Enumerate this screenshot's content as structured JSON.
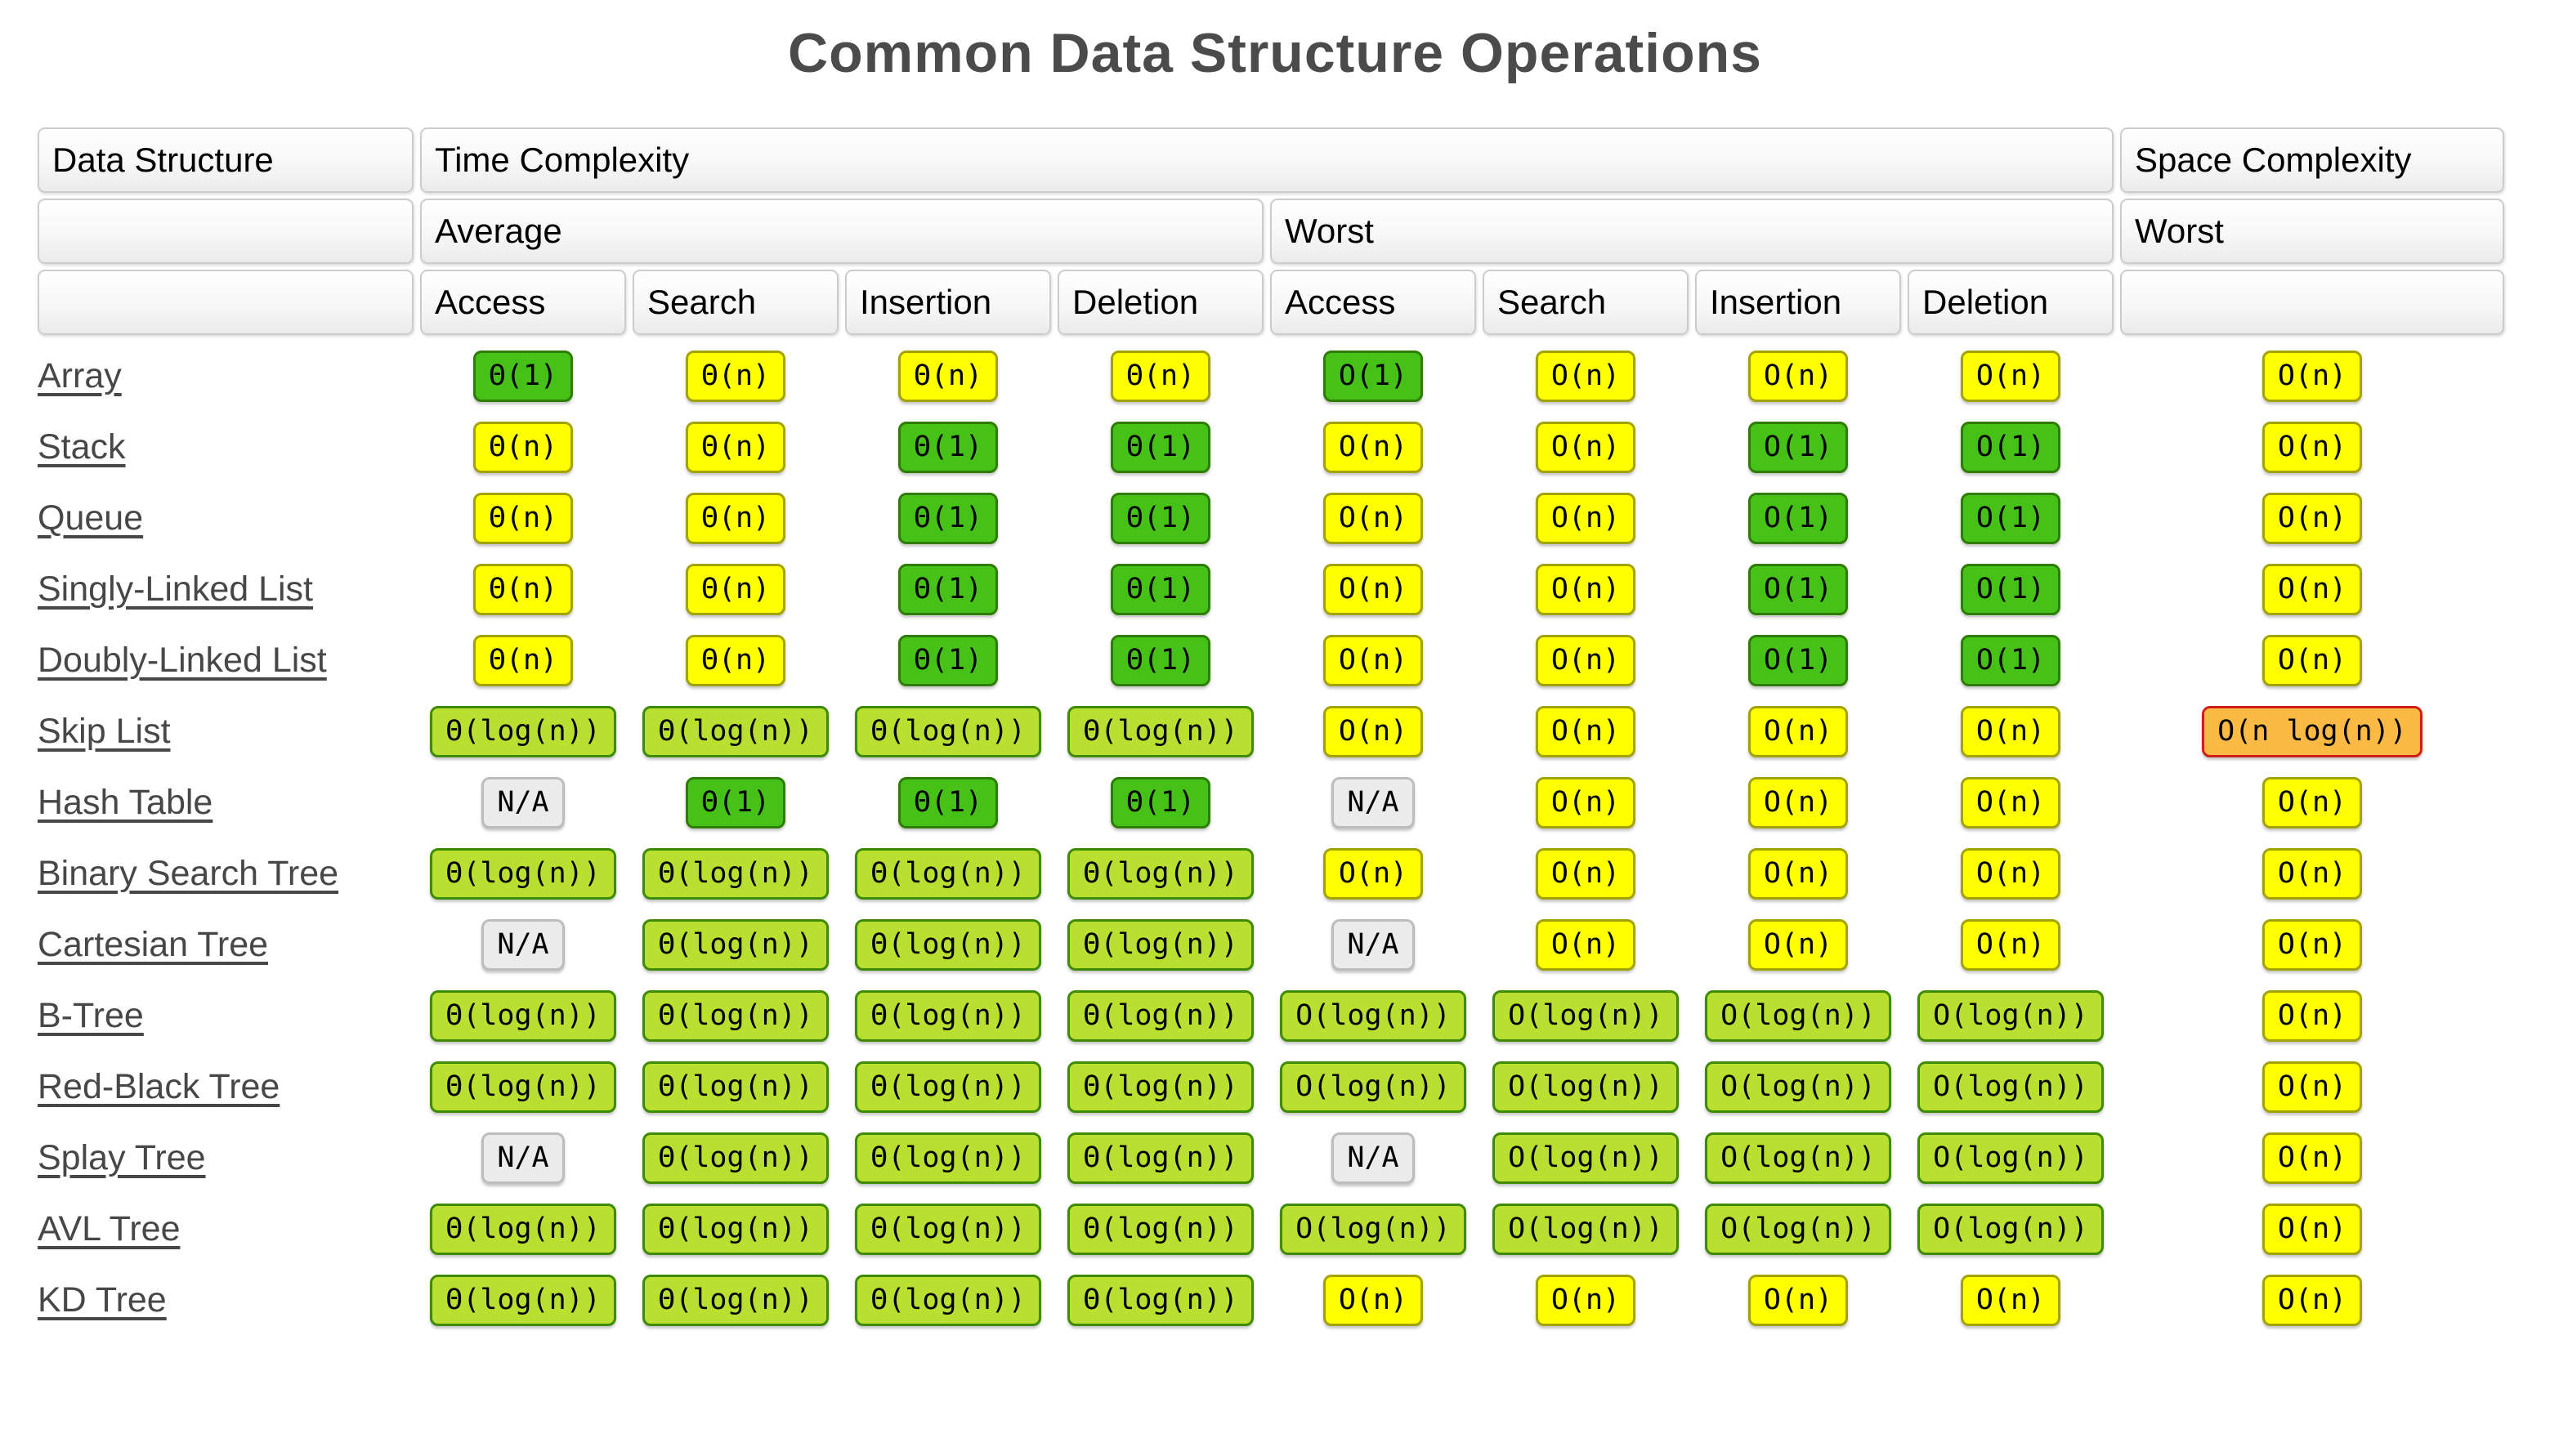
{
  "title": "Common Data Structure Operations",
  "header": {
    "data_structure": "Data Structure",
    "time_complexity": "Time Complexity",
    "space_complexity": "Space Complexity",
    "average": "Average",
    "worst": "Worst",
    "space_worst": "Worst",
    "operations": [
      "Access",
      "Search",
      "Insertion",
      "Deletion",
      "Access",
      "Search",
      "Insertion",
      "Deletion"
    ]
  },
  "legend_colors": {
    "excellent_green": "#46c117",
    "good_yellowgreen": "#b9e030",
    "fair_yellow": "#ffff00",
    "bad_orange": "#fbba44",
    "na_gray": "#ebebeb",
    "orange_border_red": "#ce2018",
    "link_gray": "#474747",
    "title_gray": "#4b4b4b"
  },
  "rows": [
    {
      "name": "Array",
      "cells": [
        {
          "v": "Θ(1)",
          "c": "green"
        },
        {
          "v": "Θ(n)",
          "c": "yellow"
        },
        {
          "v": "Θ(n)",
          "c": "yellow"
        },
        {
          "v": "Θ(n)",
          "c": "yellow"
        },
        {
          "v": "O(1)",
          "c": "green"
        },
        {
          "v": "O(n)",
          "c": "yellow"
        },
        {
          "v": "O(n)",
          "c": "yellow"
        },
        {
          "v": "O(n)",
          "c": "yellow"
        },
        {
          "v": "O(n)",
          "c": "yellow"
        }
      ]
    },
    {
      "name": "Stack",
      "cells": [
        {
          "v": "Θ(n)",
          "c": "yellow"
        },
        {
          "v": "Θ(n)",
          "c": "yellow"
        },
        {
          "v": "Θ(1)",
          "c": "green"
        },
        {
          "v": "Θ(1)",
          "c": "green"
        },
        {
          "v": "O(n)",
          "c": "yellow"
        },
        {
          "v": "O(n)",
          "c": "yellow"
        },
        {
          "v": "O(1)",
          "c": "green"
        },
        {
          "v": "O(1)",
          "c": "green"
        },
        {
          "v": "O(n)",
          "c": "yellow"
        }
      ]
    },
    {
      "name": "Queue",
      "cells": [
        {
          "v": "Θ(n)",
          "c": "yellow"
        },
        {
          "v": "Θ(n)",
          "c": "yellow"
        },
        {
          "v": "Θ(1)",
          "c": "green"
        },
        {
          "v": "Θ(1)",
          "c": "green"
        },
        {
          "v": "O(n)",
          "c": "yellow"
        },
        {
          "v": "O(n)",
          "c": "yellow"
        },
        {
          "v": "O(1)",
          "c": "green"
        },
        {
          "v": "O(1)",
          "c": "green"
        },
        {
          "v": "O(n)",
          "c": "yellow"
        }
      ]
    },
    {
      "name": "Singly-Linked List",
      "cells": [
        {
          "v": "Θ(n)",
          "c": "yellow"
        },
        {
          "v": "Θ(n)",
          "c": "yellow"
        },
        {
          "v": "Θ(1)",
          "c": "green"
        },
        {
          "v": "Θ(1)",
          "c": "green"
        },
        {
          "v": "O(n)",
          "c": "yellow"
        },
        {
          "v": "O(n)",
          "c": "yellow"
        },
        {
          "v": "O(1)",
          "c": "green"
        },
        {
          "v": "O(1)",
          "c": "green"
        },
        {
          "v": "O(n)",
          "c": "yellow"
        }
      ]
    },
    {
      "name": "Doubly-Linked List",
      "cells": [
        {
          "v": "Θ(n)",
          "c": "yellow"
        },
        {
          "v": "Θ(n)",
          "c": "yellow"
        },
        {
          "v": "Θ(1)",
          "c": "green"
        },
        {
          "v": "Θ(1)",
          "c": "green"
        },
        {
          "v": "O(n)",
          "c": "yellow"
        },
        {
          "v": "O(n)",
          "c": "yellow"
        },
        {
          "v": "O(1)",
          "c": "green"
        },
        {
          "v": "O(1)",
          "c": "green"
        },
        {
          "v": "O(n)",
          "c": "yellow"
        }
      ]
    },
    {
      "name": "Skip List",
      "cells": [
        {
          "v": "Θ(log(n))",
          "c": "yellowgreen"
        },
        {
          "v": "Θ(log(n))",
          "c": "yellowgreen"
        },
        {
          "v": "Θ(log(n))",
          "c": "yellowgreen"
        },
        {
          "v": "Θ(log(n))",
          "c": "yellowgreen"
        },
        {
          "v": "O(n)",
          "c": "yellow"
        },
        {
          "v": "O(n)",
          "c": "yellow"
        },
        {
          "v": "O(n)",
          "c": "yellow"
        },
        {
          "v": "O(n)",
          "c": "yellow"
        },
        {
          "v": "O(n log(n))",
          "c": "orange"
        }
      ]
    },
    {
      "name": "Hash Table",
      "cells": [
        {
          "v": "N/A",
          "c": "gray"
        },
        {
          "v": "Θ(1)",
          "c": "green"
        },
        {
          "v": "Θ(1)",
          "c": "green"
        },
        {
          "v": "Θ(1)",
          "c": "green"
        },
        {
          "v": "N/A",
          "c": "gray"
        },
        {
          "v": "O(n)",
          "c": "yellow"
        },
        {
          "v": "O(n)",
          "c": "yellow"
        },
        {
          "v": "O(n)",
          "c": "yellow"
        },
        {
          "v": "O(n)",
          "c": "yellow"
        }
      ]
    },
    {
      "name": "Binary Search Tree",
      "cells": [
        {
          "v": "Θ(log(n))",
          "c": "yellowgreen"
        },
        {
          "v": "Θ(log(n))",
          "c": "yellowgreen"
        },
        {
          "v": "Θ(log(n))",
          "c": "yellowgreen"
        },
        {
          "v": "Θ(log(n))",
          "c": "yellowgreen"
        },
        {
          "v": "O(n)",
          "c": "yellow"
        },
        {
          "v": "O(n)",
          "c": "yellow"
        },
        {
          "v": "O(n)",
          "c": "yellow"
        },
        {
          "v": "O(n)",
          "c": "yellow"
        },
        {
          "v": "O(n)",
          "c": "yellow"
        }
      ]
    },
    {
      "name": "Cartesian Tree",
      "cells": [
        {
          "v": "N/A",
          "c": "gray"
        },
        {
          "v": "Θ(log(n))",
          "c": "yellowgreen"
        },
        {
          "v": "Θ(log(n))",
          "c": "yellowgreen"
        },
        {
          "v": "Θ(log(n))",
          "c": "yellowgreen"
        },
        {
          "v": "N/A",
          "c": "gray"
        },
        {
          "v": "O(n)",
          "c": "yellow"
        },
        {
          "v": "O(n)",
          "c": "yellow"
        },
        {
          "v": "O(n)",
          "c": "yellow"
        },
        {
          "v": "O(n)",
          "c": "yellow"
        }
      ]
    },
    {
      "name": "B-Tree",
      "cells": [
        {
          "v": "Θ(log(n))",
          "c": "yellowgreen"
        },
        {
          "v": "Θ(log(n))",
          "c": "yellowgreen"
        },
        {
          "v": "Θ(log(n))",
          "c": "yellowgreen"
        },
        {
          "v": "Θ(log(n))",
          "c": "yellowgreen"
        },
        {
          "v": "O(log(n))",
          "c": "yellowgreen"
        },
        {
          "v": "O(log(n))",
          "c": "yellowgreen"
        },
        {
          "v": "O(log(n))",
          "c": "yellowgreen"
        },
        {
          "v": "O(log(n))",
          "c": "yellowgreen"
        },
        {
          "v": "O(n)",
          "c": "yellow"
        }
      ]
    },
    {
      "name": "Red-Black Tree",
      "cells": [
        {
          "v": "Θ(log(n))",
          "c": "yellowgreen"
        },
        {
          "v": "Θ(log(n))",
          "c": "yellowgreen"
        },
        {
          "v": "Θ(log(n))",
          "c": "yellowgreen"
        },
        {
          "v": "Θ(log(n))",
          "c": "yellowgreen"
        },
        {
          "v": "O(log(n))",
          "c": "yellowgreen"
        },
        {
          "v": "O(log(n))",
          "c": "yellowgreen"
        },
        {
          "v": "O(log(n))",
          "c": "yellowgreen"
        },
        {
          "v": "O(log(n))",
          "c": "yellowgreen"
        },
        {
          "v": "O(n)",
          "c": "yellow"
        }
      ]
    },
    {
      "name": "Splay Tree",
      "cells": [
        {
          "v": "N/A",
          "c": "gray"
        },
        {
          "v": "Θ(log(n))",
          "c": "yellowgreen"
        },
        {
          "v": "Θ(log(n))",
          "c": "yellowgreen"
        },
        {
          "v": "Θ(log(n))",
          "c": "yellowgreen"
        },
        {
          "v": "N/A",
          "c": "gray"
        },
        {
          "v": "O(log(n))",
          "c": "yellowgreen"
        },
        {
          "v": "O(log(n))",
          "c": "yellowgreen"
        },
        {
          "v": "O(log(n))",
          "c": "yellowgreen"
        },
        {
          "v": "O(n)",
          "c": "yellow"
        }
      ]
    },
    {
      "name": "AVL Tree",
      "cells": [
        {
          "v": "Θ(log(n))",
          "c": "yellowgreen"
        },
        {
          "v": "Θ(log(n))",
          "c": "yellowgreen"
        },
        {
          "v": "Θ(log(n))",
          "c": "yellowgreen"
        },
        {
          "v": "Θ(log(n))",
          "c": "yellowgreen"
        },
        {
          "v": "O(log(n))",
          "c": "yellowgreen"
        },
        {
          "v": "O(log(n))",
          "c": "yellowgreen"
        },
        {
          "v": "O(log(n))",
          "c": "yellowgreen"
        },
        {
          "v": "O(log(n))",
          "c": "yellowgreen"
        },
        {
          "v": "O(n)",
          "c": "yellow"
        }
      ]
    },
    {
      "name": "KD Tree",
      "cells": [
        {
          "v": "Θ(log(n))",
          "c": "yellowgreen"
        },
        {
          "v": "Θ(log(n))",
          "c": "yellowgreen"
        },
        {
          "v": "Θ(log(n))",
          "c": "yellowgreen"
        },
        {
          "v": "Θ(log(n))",
          "c": "yellowgreen"
        },
        {
          "v": "O(n)",
          "c": "yellow"
        },
        {
          "v": "O(n)",
          "c": "yellow"
        },
        {
          "v": "O(n)",
          "c": "yellow"
        },
        {
          "v": "O(n)",
          "c": "yellow"
        },
        {
          "v": "O(n)",
          "c": "yellow"
        }
      ]
    }
  ]
}
